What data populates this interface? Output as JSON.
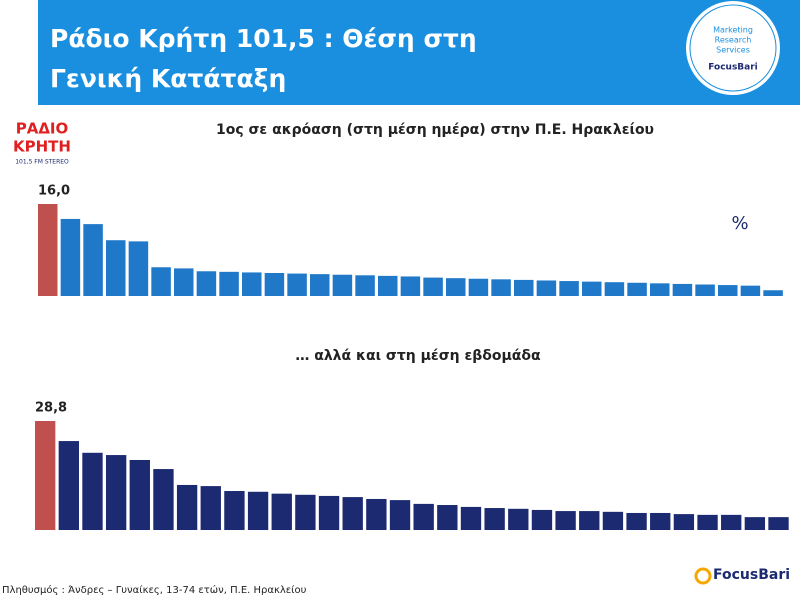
{
  "header": {
    "title_lines": [
      "Ράδιο Κρήτη 101,5 : Θέση στη",
      "Γενική Κατάταξη"
    ],
    "logo": {
      "lines": [
        "Marketing",
        "Research",
        "Services"
      ],
      "brand": "FocusBari"
    }
  },
  "station_logo": {
    "lines": [
      "ΡΑΔΙΟ",
      "ΚΡΗΤΗ"
    ],
    "tagline": "101,5 FM STEREO"
  },
  "chart_data": [
    {
      "type": "bar",
      "title": "1ος σε ακρόαση (στη μέση ημέρα) στην Π.Ε. Ηρακλείου",
      "annotation": "%",
      "values": [
        16.0,
        13.4,
        12.5,
        9.7,
        9.5,
        5.0,
        4.8,
        4.3,
        4.2,
        4.1,
        4.0,
        3.9,
        3.8,
        3.7,
        3.6,
        3.5,
        3.4,
        3.2,
        3.1,
        3.0,
        2.9,
        2.8,
        2.7,
        2.6,
        2.5,
        2.4,
        2.3,
        2.2,
        2.1,
        2.0,
        1.9,
        1.8,
        1.0
      ],
      "value_labels": [
        "16,0",
        null,
        null,
        null,
        null,
        null,
        null,
        null,
        null,
        null,
        null,
        null,
        null,
        null,
        null,
        null,
        null,
        null,
        null,
        null,
        null,
        null,
        null,
        null,
        null,
        null,
        null,
        null,
        null,
        null,
        null,
        null,
        null
      ],
      "colors": [
        "#c0504d",
        "#1f78c8",
        "#1f78c8",
        "#1f78c8",
        "#1f78c8",
        "#1f78c8",
        "#1f78c8",
        "#1f78c8",
        "#1f78c8",
        "#1f78c8",
        "#1f78c8",
        "#1f78c8",
        "#1f78c8",
        "#1f78c8",
        "#1f78c8",
        "#1f78c8",
        "#1f78c8",
        "#1f78c8",
        "#1f78c8",
        "#1f78c8",
        "#1f78c8",
        "#1f78c8",
        "#1f78c8",
        "#1f78c8",
        "#1f78c8",
        "#1f78c8",
        "#1f78c8",
        "#1f78c8",
        "#1f78c8",
        "#1f78c8",
        "#1f78c8",
        "#1f78c8",
        "#1f78c8"
      ]
    },
    {
      "type": "bar",
      "title": "… αλλά και στη μέση εβδομάδα",
      "values": [
        28.8,
        23.5,
        20.4,
        19.8,
        18.5,
        16.1,
        11.9,
        11.6,
        10.3,
        10.1,
        9.6,
        9.3,
        9.0,
        8.7,
        8.2,
        7.9,
        6.9,
        6.6,
        6.1,
        5.8,
        5.6,
        5.3,
        5.0,
        5.0,
        4.8,
        4.5,
        4.5,
        4.2,
        4.0,
        4.0,
        3.4,
        3.4
      ],
      "value_labels": [
        "28,8",
        null,
        null,
        null,
        null,
        null,
        null,
        null,
        null,
        null,
        null,
        null,
        null,
        null,
        null,
        null,
        null,
        null,
        null,
        null,
        null,
        null,
        null,
        null,
        null,
        null,
        null,
        null,
        null,
        null,
        null,
        null
      ],
      "colors": [
        "#c0504d",
        "#1c2a72",
        "#1c2a72",
        "#1c2a72",
        "#1c2a72",
        "#1c2a72",
        "#1c2a72",
        "#1c2a72",
        "#1c2a72",
        "#1c2a72",
        "#1c2a72",
        "#1c2a72",
        "#1c2a72",
        "#1c2a72",
        "#1c2a72",
        "#1c2a72",
        "#1c2a72",
        "#1c2a72",
        "#1c2a72",
        "#1c2a72",
        "#1c2a72",
        "#1c2a72",
        "#1c2a72",
        "#1c2a72",
        "#1c2a72",
        "#1c2a72",
        "#1c2a72",
        "#1c2a72",
        "#1c2a72",
        "#1c2a72",
        "#1c2a72",
        "#1c2a72"
      ]
    }
  ],
  "footer": {
    "note": "Πληθυσμός : Άνδρες – Γυναίκες, 13-74 ετών, Π.Ε.  Ηρακλείου",
    "brand": "FocusBari"
  }
}
